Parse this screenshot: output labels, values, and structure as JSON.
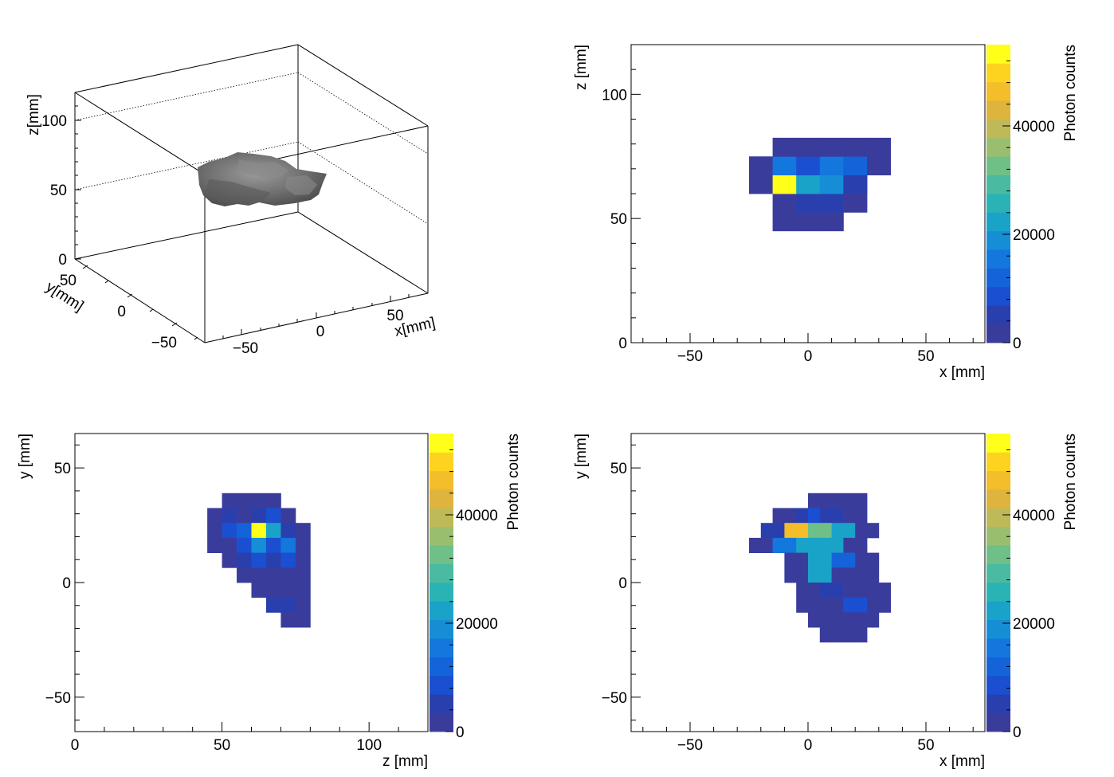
{
  "colorbar_stops": [
    "#3a3c9c",
    "#2a3fae",
    "#1b4fd1",
    "#1463d8",
    "#1377dd",
    "#158ed6",
    "#1aa3c8",
    "#2bb2b5",
    "#4abaa0",
    "#6fbf88",
    "#99bf6e",
    "#bfb957",
    "#deb43d",
    "#f4bd2a",
    "#fdd320",
    "#ffff19"
  ],
  "chart_data": [
    {
      "id": "panel3d",
      "type": "scatter",
      "subtype": "3d-isosurface",
      "xlabel": "x[mm]",
      "ylabel": "y[mm]",
      "zlabel": "z[mm]",
      "xticks": [
        "−50",
        "0",
        "50"
      ],
      "yticks": [
        "50",
        "0",
        "−50"
      ],
      "zticks": [
        "100",
        "50",
        "0"
      ],
      "xlim": [
        -75,
        75
      ],
      "ylim": [
        -65,
        65
      ],
      "zlim": [
        0,
        120
      ],
      "surface_color": "#6e6e6e"
    },
    {
      "id": "xz",
      "type": "heatmap",
      "xlabel": "x [mm]",
      "ylabel": "z [mm]",
      "zlabel": "Photon counts",
      "xlim": [
        -75,
        75
      ],
      "ylim": [
        0,
        120
      ],
      "zlim": [
        0,
        55000
      ],
      "xticks": [
        -50,
        0,
        50
      ],
      "yticks": [
        0,
        50,
        100
      ],
      "zticks": [
        0,
        20000,
        40000
      ],
      "bin_w": 10,
      "bin_h": 7.5,
      "cells": [
        [
          -15,
          45,
          1200
        ],
        [
          -5,
          45,
          1500
        ],
        [
          5,
          45,
          1200
        ],
        [
          -15,
          52.5,
          1500
        ],
        [
          -5,
          52.5,
          5000
        ],
        [
          5,
          52.5,
          4000
        ],
        [
          15,
          52.5,
          1500
        ],
        [
          -15,
          60,
          1800
        ],
        [
          -5,
          60,
          6000
        ],
        [
          5,
          60,
          10000
        ],
        [
          15,
          60,
          4000
        ],
        [
          -25,
          60,
          1200
        ],
        [
          -15,
          60,
          55000
        ],
        [
          -5,
          60,
          22000
        ],
        [
          5,
          60,
          20000
        ],
        [
          15,
          60,
          6000
        ],
        [
          -25,
          67.5,
          1500
        ],
        [
          -15,
          67.5,
          14000
        ],
        [
          -5,
          67.5,
          9000
        ],
        [
          5,
          67.5,
          17000
        ],
        [
          15,
          67.5,
          11000
        ],
        [
          25,
          67.5,
          2000
        ],
        [
          -15,
          75,
          1500
        ],
        [
          -5,
          75,
          2500
        ],
        [
          5,
          75,
          3000
        ],
        [
          15,
          75,
          2000
        ],
        [
          25,
          75,
          1500
        ]
      ]
    },
    {
      "id": "zy",
      "type": "heatmap",
      "xlabel": "z [mm]",
      "ylabel": "y [mm]",
      "zlabel": "Photon counts",
      "xlim": [
        0,
        120
      ],
      "ylim": [
        -65,
        65
      ],
      "zlim": [
        0,
        55000
      ],
      "xticks": [
        0,
        50,
        100
      ],
      "yticks": [
        -50,
        0,
        50
      ],
      "zticks": [
        0,
        20000,
        40000
      ],
      "bin_w": 5,
      "bin_h": 6.5,
      "cells": [
        [
          50,
          32.5,
          1500
        ],
        [
          55,
          32.5,
          1500
        ],
        [
          60,
          32.5,
          1500
        ],
        [
          65,
          32.5,
          1500
        ],
        [
          45,
          26,
          1500
        ],
        [
          50,
          26,
          4000
        ],
        [
          55,
          26,
          3000
        ],
        [
          60,
          26,
          6000
        ],
        [
          65,
          26,
          7000
        ],
        [
          70,
          26,
          2000
        ],
        [
          45,
          19.5,
          1500
        ],
        [
          50,
          19.5,
          9000
        ],
        [
          55,
          19.5,
          12000
        ],
        [
          60,
          19.5,
          55000
        ],
        [
          65,
          19.5,
          24000
        ],
        [
          70,
          19.5,
          4000
        ],
        [
          75,
          19.5,
          2000
        ],
        [
          45,
          13,
          1500
        ],
        [
          50,
          13,
          3000
        ],
        [
          55,
          13,
          7000
        ],
        [
          60,
          13,
          19000
        ],
        [
          65,
          13,
          9000
        ],
        [
          70,
          13,
          15000
        ],
        [
          75,
          13,
          2000
        ],
        [
          50,
          6.5,
          1500
        ],
        [
          55,
          6.5,
          4000
        ],
        [
          60,
          6.5,
          9000
        ],
        [
          65,
          6.5,
          5000
        ],
        [
          70,
          6.5,
          7000
        ],
        [
          75,
          6.5,
          2000
        ],
        [
          55,
          0,
          1500
        ],
        [
          60,
          0,
          3000
        ],
        [
          65,
          0,
          2500
        ],
        [
          70,
          0,
          1800
        ],
        [
          75,
          0,
          1500
        ],
        [
          60,
          -6.5,
          1500
        ],
        [
          65,
          -6.5,
          2000
        ],
        [
          70,
          -6.5,
          1500
        ],
        [
          75,
          -6.5,
          1500
        ],
        [
          65,
          -13,
          6000
        ],
        [
          70,
          -13,
          5500
        ],
        [
          75,
          -13,
          1500
        ],
        [
          70,
          -19.5,
          1500
        ],
        [
          75,
          -19.5,
          1500
        ]
      ]
    },
    {
      "id": "xy",
      "type": "heatmap",
      "xlabel": "x [mm]",
      "ylabel": "y [mm]",
      "zlabel": "Photon counts",
      "xlim": [
        -75,
        75
      ],
      "ylim": [
        -65,
        65
      ],
      "zlim": [
        0,
        55000
      ],
      "xticks": [
        -50,
        0,
        50
      ],
      "yticks": [
        -50,
        0,
        50
      ],
      "zticks": [
        0,
        20000,
        40000
      ],
      "bin_w": 5,
      "bin_h": 6.5,
      "cells": [
        [
          0,
          32.5,
          1500
        ],
        [
          5,
          32.5,
          1500
        ],
        [
          10,
          32.5,
          1500
        ],
        [
          15,
          32.5,
          1500
        ],
        [
          20,
          32.5,
          1500
        ],
        [
          -15,
          26,
          1500
        ],
        [
          -10,
          26,
          1800
        ],
        [
          -5,
          26,
          6000
        ],
        [
          0,
          26,
          7000
        ],
        [
          5,
          26,
          5000
        ],
        [
          10,
          26,
          6000
        ],
        [
          15,
          26,
          1800
        ],
        [
          20,
          26,
          1500
        ],
        [
          -20,
          19.5,
          6000
        ],
        [
          -15,
          19.5,
          6000
        ],
        [
          -10,
          19.5,
          47000
        ],
        [
          -5,
          19.5,
          47000
        ],
        [
          0,
          19.5,
          33000
        ],
        [
          5,
          19.5,
          33000
        ],
        [
          10,
          19.5,
          22000
        ],
        [
          15,
          19.5,
          22000
        ],
        [
          20,
          19.5,
          2000
        ],
        [
          25,
          19.5,
          2000
        ],
        [
          -25,
          13,
          1500
        ],
        [
          -20,
          13,
          1500
        ],
        [
          -15,
          13,
          14000
        ],
        [
          -10,
          13,
          14000
        ],
        [
          -5,
          13,
          22000
        ],
        [
          0,
          13,
          22000
        ],
        [
          5,
          13,
          22000
        ],
        [
          10,
          13,
          22000
        ],
        [
          15,
          13,
          1800
        ],
        [
          20,
          13,
          1800
        ],
        [
          -10,
          6.5,
          1500
        ],
        [
          -5,
          6.5,
          1500
        ],
        [
          0,
          6.5,
          22000
        ],
        [
          5,
          6.5,
          22000
        ],
        [
          10,
          6.5,
          11000
        ],
        [
          15,
          6.5,
          11000
        ],
        [
          20,
          6.5,
          2000
        ],
        [
          25,
          6.5,
          2000
        ],
        [
          -10,
          0,
          1500
        ],
        [
          -5,
          0,
          1500
        ],
        [
          0,
          0,
          22000
        ],
        [
          5,
          0,
          22000
        ],
        [
          10,
          0,
          2500
        ],
        [
          15,
          0,
          2500
        ],
        [
          20,
          0,
          1500
        ],
        [
          25,
          0,
          1500
        ],
        [
          -5,
          -6.5,
          1500
        ],
        [
          0,
          -6.5,
          1500
        ],
        [
          5,
          -6.5,
          6000
        ],
        [
          10,
          -6.5,
          6000
        ],
        [
          15,
          -6.5,
          1800
        ],
        [
          20,
          -6.5,
          1800
        ],
        [
          25,
          -6.5,
          1500
        ],
        [
          30,
          -6.5,
          1500
        ],
        [
          -5,
          -13,
          1500
        ],
        [
          0,
          -13,
          1500
        ],
        [
          5,
          -13,
          3000
        ],
        [
          10,
          -13,
          3000
        ],
        [
          15,
          -13,
          8000
        ],
        [
          20,
          -13,
          8000
        ],
        [
          25,
          -13,
          1500
        ],
        [
          30,
          -13,
          1500
        ],
        [
          0,
          -19.5,
          1500
        ],
        [
          5,
          -19.5,
          1500
        ],
        [
          10,
          -19.5,
          1500
        ],
        [
          15,
          -19.5,
          1500
        ],
        [
          20,
          -19.5,
          1500
        ],
        [
          25,
          -19.5,
          1500
        ],
        [
          5,
          -26,
          1500
        ],
        [
          10,
          -26,
          1500
        ],
        [
          15,
          -26,
          1500
        ],
        [
          20,
          -26,
          1500
        ]
      ]
    }
  ]
}
